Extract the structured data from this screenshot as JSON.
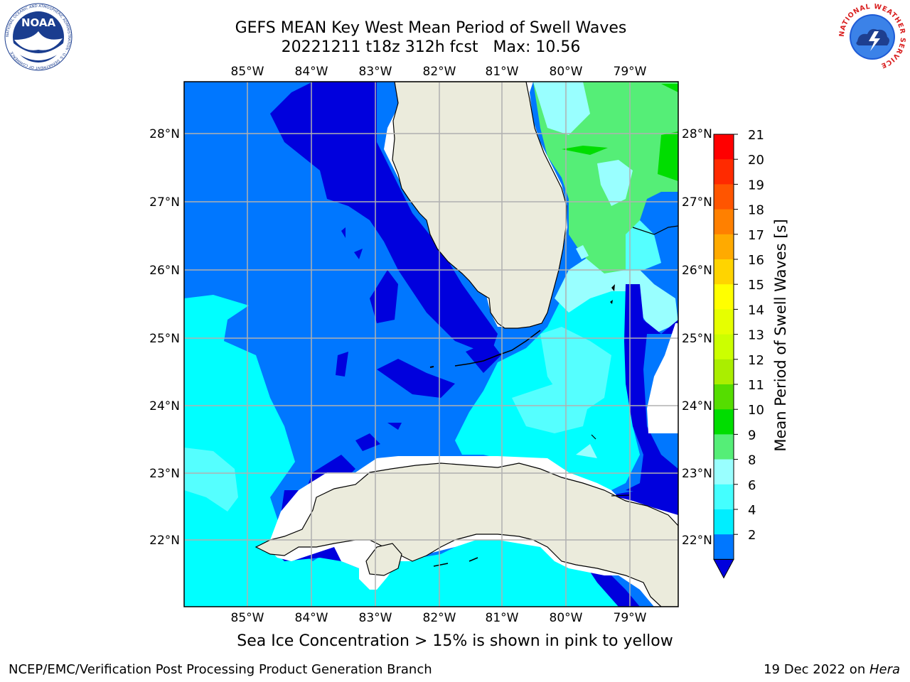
{
  "header": {
    "title_line1": "GEFS MEAN Key West Mean Period of Swell Waves",
    "title_line2": "20221211 t18z 312h fcst   Max: 10.56"
  },
  "map": {
    "lon_labels": [
      "85°W",
      "84°W",
      "83°W",
      "82°W",
      "81°W",
      "80°W",
      "79°W"
    ],
    "lat_labels": [
      "28°N",
      "27°N",
      "26°N",
      "25°N",
      "24°N",
      "23°N",
      "22°N"
    ]
  },
  "colorbar": {
    "label": "Mean Period of Swell Waves [s]",
    "ticks": [
      "21",
      "20",
      "19",
      "18",
      "17",
      "16",
      "15",
      "14",
      "13",
      "12",
      "11",
      "10",
      "9",
      "8",
      "6",
      "4",
      "2"
    ],
    "colors": [
      "#ff0000",
      "#ff2a00",
      "#ff5500",
      "#ff8000",
      "#ffaa00",
      "#ffd400",
      "#ffff00",
      "#e6ff00",
      "#ccff00",
      "#aaee00",
      "#55dd00",
      "#00dd00",
      "#55ee77",
      "#99ffff",
      "#44ffff",
      "#00eeff",
      "#0077ff"
    ],
    "extend_color": "#0000dd"
  },
  "colors": {
    "land": "#ebebdc",
    "deep_blue": "#0000dd",
    "blue": "#0077ff",
    "cyan": "#00ffff",
    "light_cyan": "#55ffff",
    "pale_cyan": "#99ffff",
    "green": "#55ee77",
    "bright_green": "#00dd00",
    "grid": "#b0b0b0"
  },
  "logos": {
    "noaa_text": "NOAA",
    "noaa_ring_text": "NATIONAL OCEANIC AND ATMOSPHERIC ADMINISTRATION · U.S. DEPARTMENT OF COMMERCE",
    "nws_ring_text": "NATIONAL WEATHER SERVICE"
  },
  "sea_ice_note": "Sea Ice Concentration > 15% is shown in pink to yellow",
  "footer": {
    "left": "NCEP/EMC/Verification Post Processing Product Generation Branch",
    "right_prefix": "19 Dec 2022 on ",
    "right_host": "Hera"
  }
}
